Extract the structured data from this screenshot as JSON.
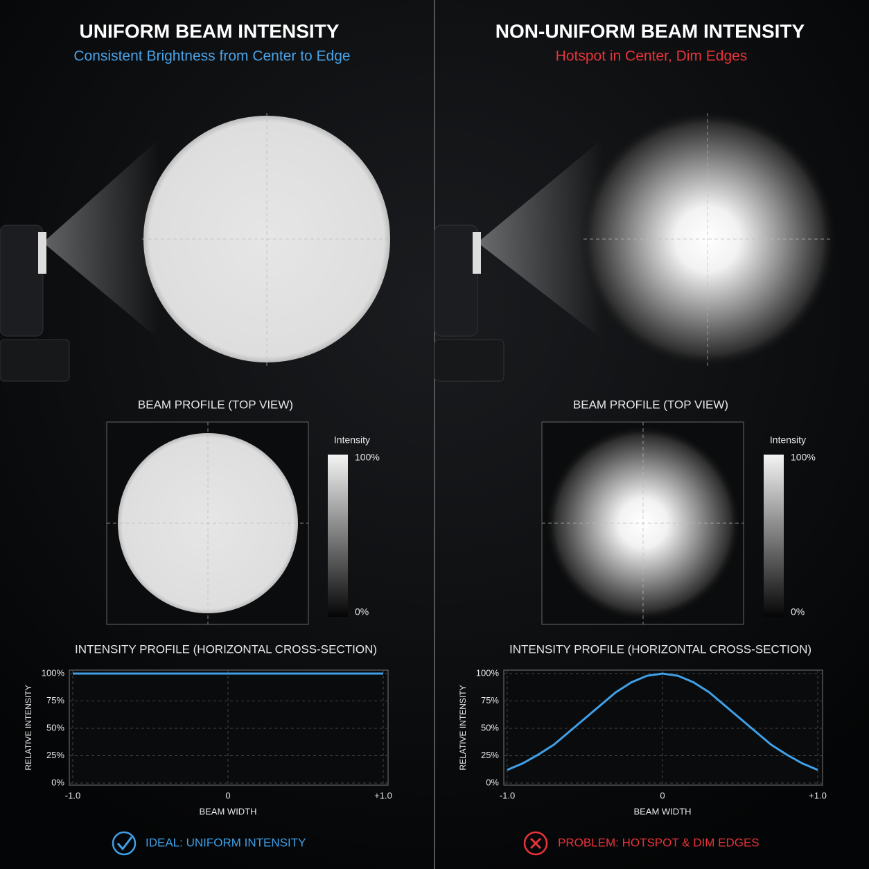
{
  "panels": [
    {
      "title": "UNIFORM BEAM INTENSITY",
      "subtitle": "Consistent Brightness from Center to Edge",
      "profile_title": "BEAM PROFILE (TOP VIEW)",
      "legend_title": "Intensity",
      "legend_max": "100%",
      "legend_min": "0%",
      "verdict": "IDEAL: UNIFORM INTENSITY"
    },
    {
      "title": "NON-UNIFORM BEAM INTENSITY",
      "subtitle": "Hotspot in Center, Dim Edges",
      "profile_title": "BEAM PROFILE (TOP VIEW)",
      "legend_title": "Intensity",
      "legend_max": "100%",
      "legend_min": "0%",
      "verdict": "PROBLEM: HOTSPOT & DIM EDGES"
    }
  ],
  "chart_data": [
    {
      "type": "line",
      "title": "INTENSITY PROFILE (HORIZONTAL CROSS-SECTION)",
      "x_label": "BEAM WIDTH",
      "y_label": "RELATIVE INTENSITY",
      "x": [
        -1,
        -0.5,
        0,
        0.5,
        1
      ],
      "values": [
        100,
        100,
        100,
        100,
        100
      ],
      "color": "#3fa0e8",
      "xlim": [
        -1,
        1
      ],
      "xticks": [
        {
          "value": -1,
          "label": "-1.0"
        },
        0,
        {
          "value": 1,
          "label": "+1.0"
        }
      ],
      "ylim": [
        0,
        100
      ],
      "yticks": [
        {
          "value": 0,
          "label": "0%"
        },
        {
          "value": 25,
          "label": "25%"
        },
        {
          "value": 50,
          "label": "50%"
        },
        {
          "value": 75,
          "label": "75%"
        },
        {
          "value": 100,
          "label": "100%"
        }
      ],
      "grid": true
    },
    {
      "type": "line",
      "title": "INTENSITY PROFILE (HORIZONTAL CROSS-SECTION)",
      "x_label": "BEAM WIDTH",
      "y_label": "RELATIVE INTENSITY",
      "x": [
        -1,
        -0.9,
        -0.8,
        -0.7,
        -0.6,
        -0.5,
        -0.4,
        -0.3,
        -0.2,
        -0.1,
        0,
        0.1,
        0.2,
        0.3,
        0.4,
        0.5,
        0.6,
        0.7,
        0.8,
        0.9,
        1
      ],
      "values": [
        12,
        18,
        26,
        35,
        47,
        59,
        71,
        83,
        92,
        98,
        100,
        98,
        92,
        83,
        71,
        59,
        47,
        35,
        26,
        18,
        12
      ],
      "color": "#3fa0e8",
      "xlim": [
        -1,
        1
      ],
      "xticks": [
        {
          "value": -1,
          "label": "-1.0"
        },
        0,
        {
          "value": 1,
          "label": "+1.0"
        }
      ],
      "ylim": [
        0,
        100
      ],
      "yticks": [
        {
          "value": 0,
          "label": "0%"
        },
        {
          "value": 25,
          "label": "25%"
        },
        {
          "value": 50,
          "label": "50%"
        },
        {
          "value": 75,
          "label": "75%"
        },
        {
          "value": 100,
          "label": "100%"
        }
      ],
      "grid": true
    }
  ]
}
